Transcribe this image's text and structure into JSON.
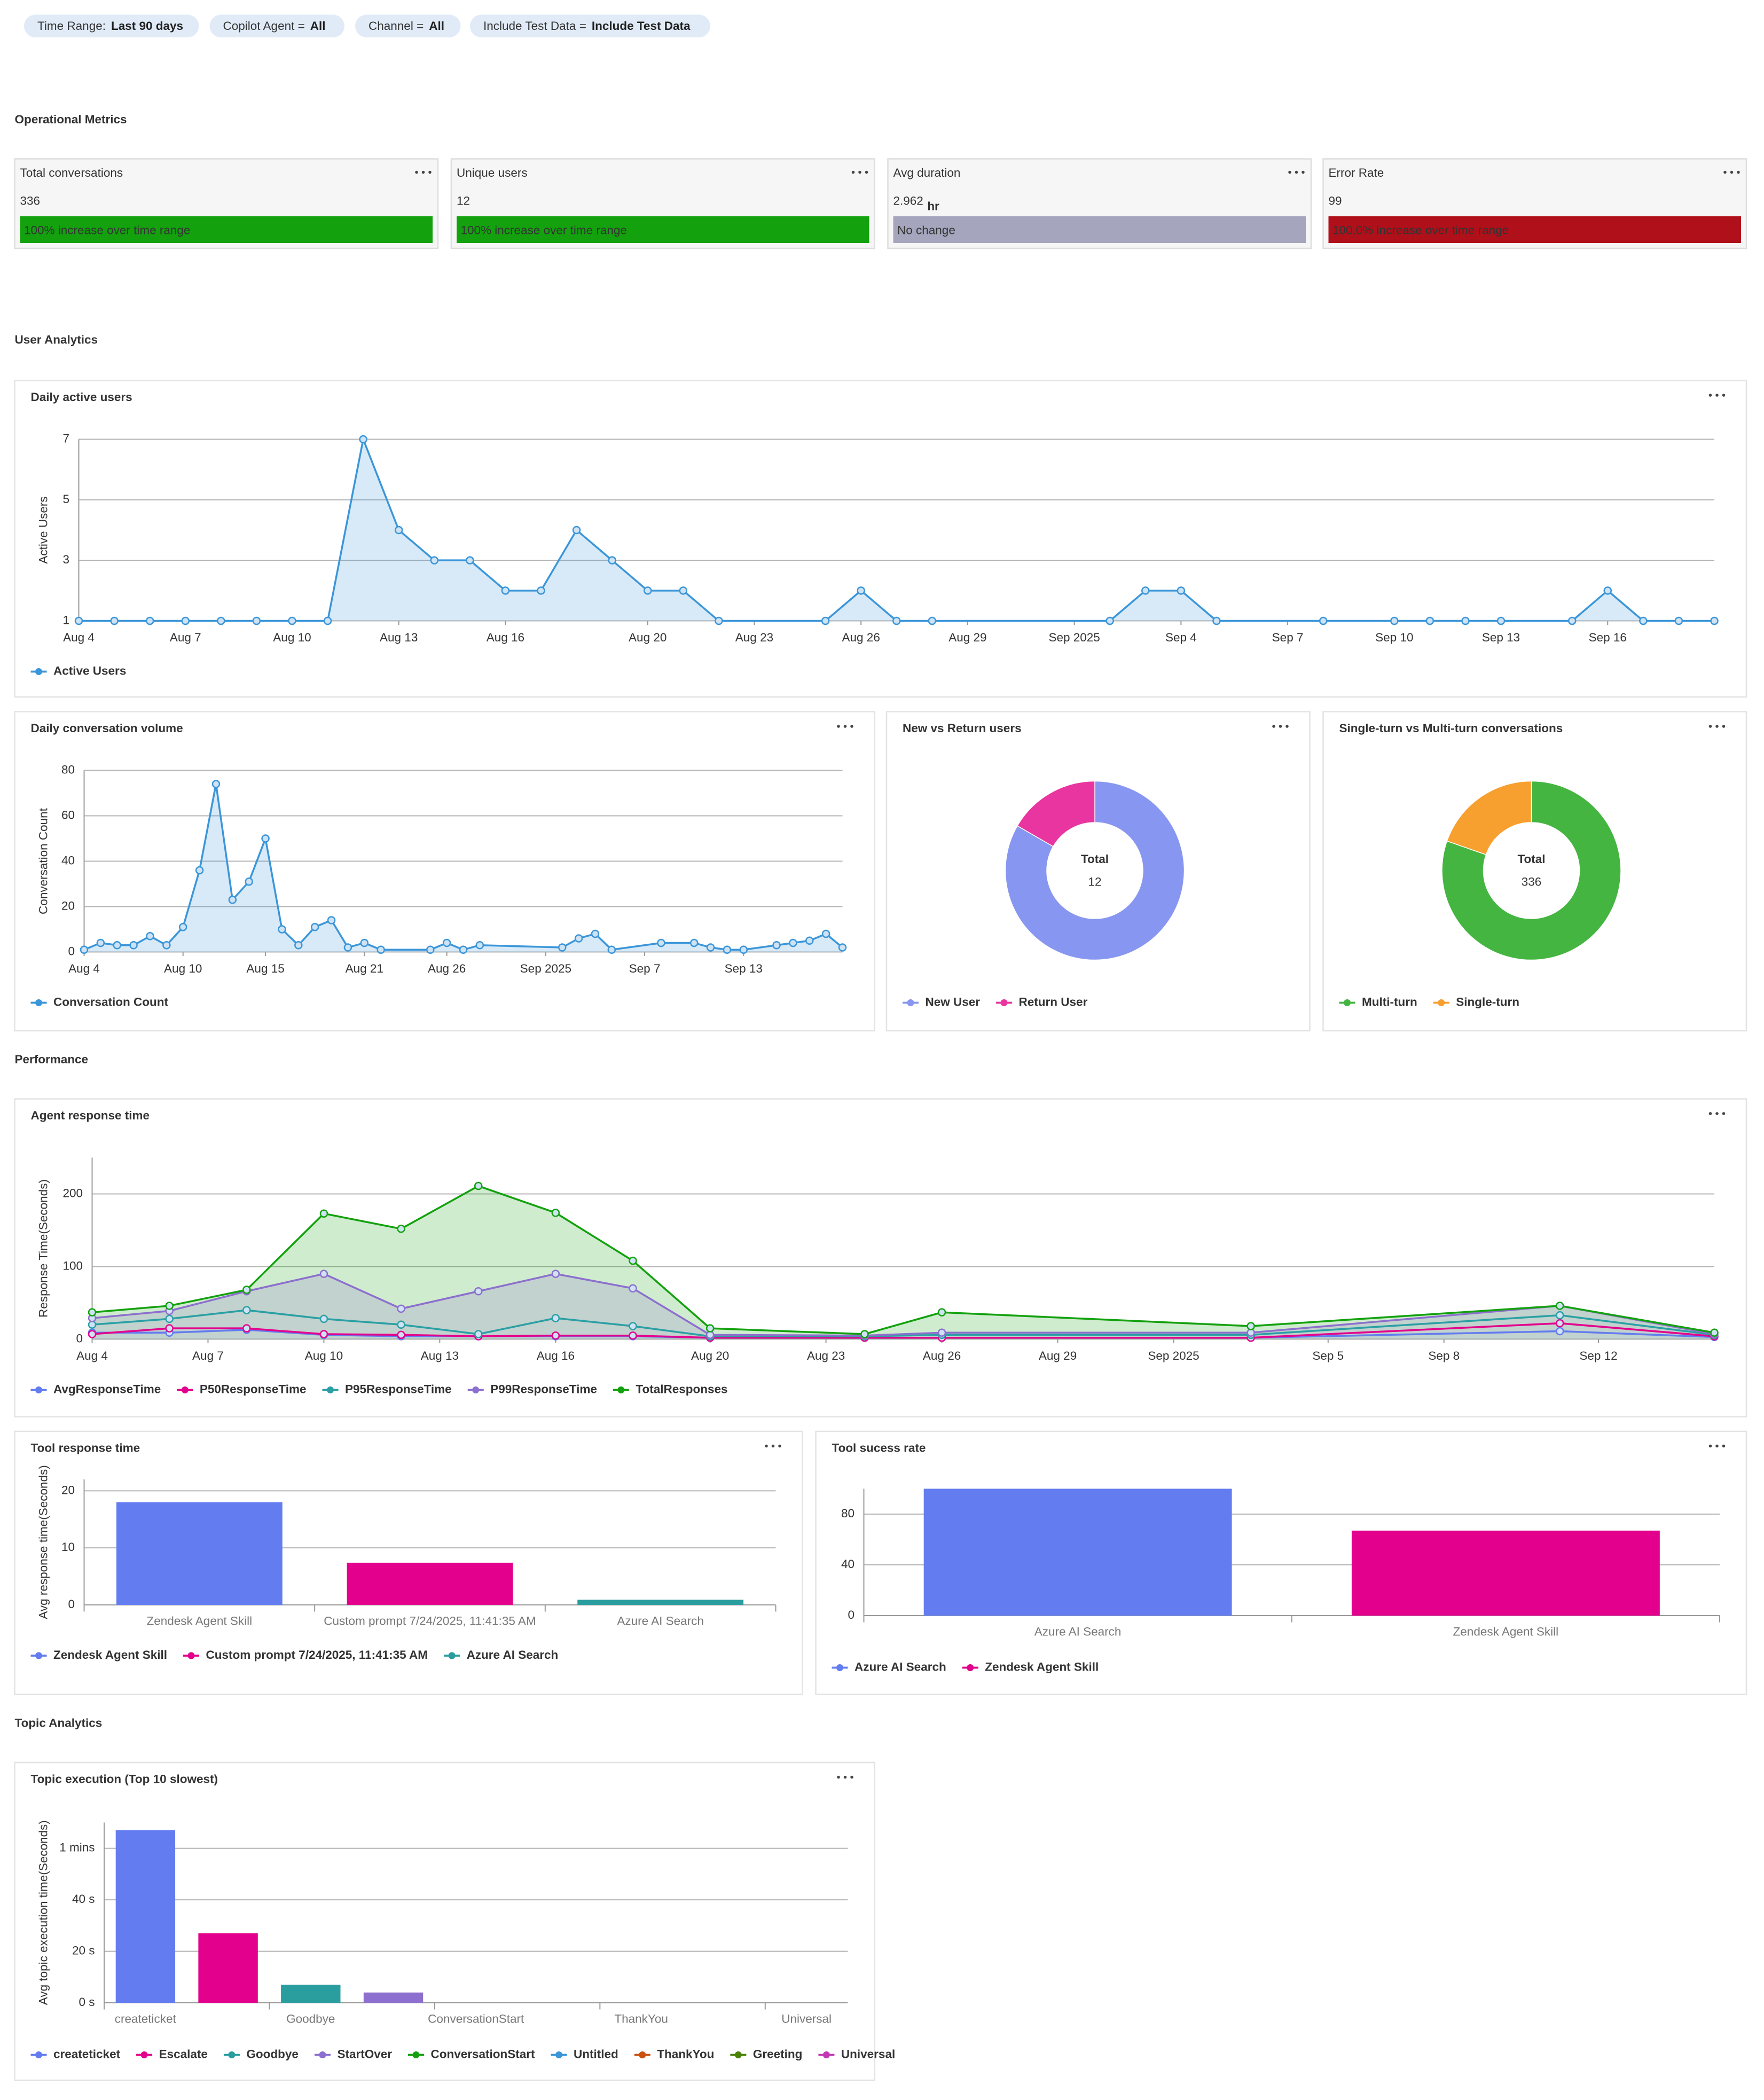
{
  "filters": [
    {
      "label": "Time Range:",
      "value": "Last 90 days"
    },
    {
      "label": "Copilot Agent =",
      "value": "All"
    },
    {
      "label": "Channel =",
      "value": "All"
    },
    {
      "label": "Include Test Data =",
      "value": "Include Test Data"
    }
  ],
  "sections": [
    "Operational Metrics",
    "User Analytics",
    "Performance",
    "Topic Analytics"
  ],
  "kpis": [
    {
      "title": "Total conversations",
      "value": 336,
      "note": "100% increase over time range",
      "color": "#13a10e"
    },
    {
      "title": "Unique users",
      "value": 12,
      "note": "100% increase over time range",
      "color": "#13a10e"
    },
    {
      "title": "Avg duration",
      "value": 2.962,
      "unit": "hr",
      "note": "No change",
      "color": "#a5a6bd"
    },
    {
      "title": "Error Rate",
      "value": 99,
      "note": "100.0% increase over time range",
      "color": "#b0101a"
    }
  ],
  "chart_data": [
    {
      "type": "area",
      "title": "Daily active users",
      "y_label": "Active Users",
      "x": [
        "2025-08-04",
        "2025-08-05",
        "2025-08-06",
        "2025-08-07",
        "2025-08-08",
        "2025-08-09",
        "2025-08-10",
        "2025-08-11",
        "2025-08-12",
        "2025-08-13",
        "2025-08-14",
        "2025-08-15",
        "2025-08-16",
        "2025-08-17",
        "2025-08-18",
        "2025-08-19",
        "2025-08-20",
        "2025-08-21",
        "2025-08-22",
        "2025-08-25",
        "2025-08-26",
        "2025-08-27",
        "2025-08-28",
        "2025-09-02",
        "2025-09-03",
        "2025-09-04",
        "2025-09-05",
        "2025-09-08",
        "2025-09-10",
        "2025-09-11",
        "2025-09-12",
        "2025-09-13",
        "2025-09-15",
        "2025-09-16",
        "2025-09-17",
        "2025-09-18",
        "2025-09-19"
      ],
      "series": [
        {
          "name": "Active Users",
          "color": "#3b96d9",
          "values": [
            1,
            1,
            1,
            1,
            1,
            1,
            1,
            1,
            7,
            4,
            3,
            3,
            2,
            2,
            4,
            3,
            2,
            2,
            1,
            1,
            2,
            1,
            1,
            1,
            2,
            2,
            1,
            1,
            1,
            1,
            1,
            1,
            1,
            2,
            1,
            1,
            1
          ]
        }
      ],
      "xlim": [
        "2025-08-04",
        "2025-09-19"
      ],
      "xticks": [
        {
          "value": "2025-08-04",
          "label": "Aug 4"
        },
        {
          "value": "2025-08-07",
          "label": "Aug 7"
        },
        {
          "value": "2025-08-10",
          "label": "Aug 10"
        },
        {
          "value": "2025-08-13",
          "label": "Aug 13"
        },
        {
          "value": "2025-08-16",
          "label": "Aug 16"
        },
        {
          "value": "2025-08-20",
          "label": "Aug 20"
        },
        {
          "value": "2025-08-23",
          "label": "Aug 23"
        },
        {
          "value": "2025-08-26",
          "label": "Aug 26"
        },
        {
          "value": "2025-08-29",
          "label": "Aug 29"
        },
        {
          "value": "2025-09-01",
          "label": "Sep 2025"
        },
        {
          "value": "2025-09-04",
          "label": "Sep 4"
        },
        {
          "value": "2025-09-07",
          "label": "Sep 7"
        },
        {
          "value": "2025-09-10",
          "label": "Sep 10"
        },
        {
          "value": "2025-09-13",
          "label": "Sep 13"
        },
        {
          "value": "2025-09-16",
          "label": "Sep 16"
        }
      ],
      "ylim": [
        1,
        7
      ],
      "yticks": [
        1,
        3,
        5,
        7
      ],
      "grid": true
    },
    {
      "type": "area",
      "title": "Daily conversation volume",
      "y_label": "Conversation Count",
      "x": [
        "2025-08-04",
        "2025-08-05",
        "2025-08-06",
        "2025-08-07",
        "2025-08-08",
        "2025-08-09",
        "2025-08-10",
        "2025-08-11",
        "2025-08-12",
        "2025-08-13",
        "2025-08-14",
        "2025-08-15",
        "2025-08-16",
        "2025-08-17",
        "2025-08-18",
        "2025-08-19",
        "2025-08-20",
        "2025-08-21",
        "2025-08-22",
        "2025-08-25",
        "2025-08-26",
        "2025-08-27",
        "2025-08-28",
        "2025-09-02",
        "2025-09-03",
        "2025-09-04",
        "2025-09-05",
        "2025-09-08",
        "2025-09-10",
        "2025-09-11",
        "2025-09-12",
        "2025-09-13",
        "2025-09-15",
        "2025-09-16",
        "2025-09-17",
        "2025-09-18",
        "2025-09-19"
      ],
      "series": [
        {
          "name": "Conversation Count",
          "color": "#3b96d9",
          "values": [
            1,
            4,
            3,
            3,
            7,
            3,
            11,
            36,
            74,
            23,
            31,
            50,
            10,
            3,
            11,
            14,
            2,
            4,
            1,
            1,
            4,
            1,
            3,
            2,
            6,
            8,
            1,
            4,
            4,
            2,
            1,
            1,
            3,
            4,
            5,
            8,
            2
          ]
        }
      ],
      "xlim": [
        "2025-08-04",
        "2025-09-19"
      ],
      "xticks": [
        {
          "value": "2025-08-04",
          "label": "Aug 4"
        },
        {
          "value": "2025-08-10",
          "label": "Aug 10"
        },
        {
          "value": "2025-08-15",
          "label": "Aug 15"
        },
        {
          "value": "2025-08-21",
          "label": "Aug 21"
        },
        {
          "value": "2025-08-26",
          "label": "Aug 26"
        },
        {
          "value": "2025-09-01",
          "label": "Sep 2025"
        },
        {
          "value": "2025-09-07",
          "label": "Sep 7"
        },
        {
          "value": "2025-09-13",
          "label": "Sep 13"
        }
      ],
      "ylim": [
        0,
        80
      ],
      "yticks": [
        0,
        20,
        40,
        60,
        80
      ],
      "grid": true
    },
    {
      "type": "donut",
      "title": "New vs Return users",
      "categories": [
        "New User",
        "Return User"
      ],
      "values": [
        10,
        2
      ],
      "colors": [
        "#8796f0",
        "#e8359f"
      ],
      "center_label": "Total",
      "total": 12
    },
    {
      "type": "donut",
      "title": "Single-turn vs Multi-turn conversations",
      "categories": [
        "Multi-turn",
        "Single-turn"
      ],
      "values": [
        270,
        66
      ],
      "colors": [
        "#45b541",
        "#f7a02f"
      ],
      "center_label": "Total",
      "total": 336
    },
    {
      "type": "line",
      "title": "Agent response time",
      "y_label": "Response Time(Seconds)",
      "x": [
        "2025-08-04",
        "2025-08-06",
        "2025-08-08",
        "2025-08-10",
        "2025-08-12",
        "2025-08-14",
        "2025-08-16",
        "2025-08-18",
        "2025-08-20",
        "2025-08-24",
        "2025-08-26",
        "2025-09-03",
        "2025-09-11",
        "2025-09-15"
      ],
      "series": [
        {
          "name": "AvgResponseTime",
          "color": "#637cef",
          "values": [
            9,
            9,
            13,
            6,
            4,
            4,
            4,
            4,
            2,
            2,
            2,
            2,
            11,
            3
          ]
        },
        {
          "name": "P50ResponseTime",
          "color": "#e3008c",
          "values": [
            7,
            15,
            15,
            7,
            6,
            4,
            5,
            5,
            2,
            2,
            2,
            2,
            22,
            4
          ]
        },
        {
          "name": "P95ResponseTime",
          "color": "#2aa0a4",
          "values": [
            20,
            28,
            40,
            28,
            20,
            7,
            29,
            18,
            4,
            4,
            6,
            6,
            33,
            6
          ]
        },
        {
          "name": "P99ResponseTime",
          "color": "#8c6fce",
          "values": [
            29,
            39,
            66,
            90,
            42,
            66,
            90,
            70,
            6,
            5,
            9,
            9,
            46,
            7
          ],
          "fill": true
        },
        {
          "name": "TotalResponses",
          "color": "#13a10e",
          "values": [
            37,
            46,
            68,
            173,
            152,
            211,
            174,
            108,
            15,
            7,
            37,
            18,
            46,
            9
          ],
          "fill": true
        }
      ],
      "xlim": [
        "2025-08-04",
        "2025-09-15"
      ],
      "xticks": [
        {
          "value": "2025-08-04",
          "label": "Aug 4"
        },
        {
          "value": "2025-08-07",
          "label": "Aug 7"
        },
        {
          "value": "2025-08-10",
          "label": "Aug 10"
        },
        {
          "value": "2025-08-13",
          "label": "Aug 13"
        },
        {
          "value": "2025-08-16",
          "label": "Aug 16"
        },
        {
          "value": "2025-08-20",
          "label": "Aug 20"
        },
        {
          "value": "2025-08-23",
          "label": "Aug 23"
        },
        {
          "value": "2025-08-26",
          "label": "Aug 26"
        },
        {
          "value": "2025-08-29",
          "label": "Aug 29"
        },
        {
          "value": "2025-09-01",
          "label": "Sep 2025"
        },
        {
          "value": "2025-09-05",
          "label": "Sep 5"
        },
        {
          "value": "2025-09-08",
          "label": "Sep 8"
        },
        {
          "value": "2025-09-12",
          "label": "Sep 12"
        }
      ],
      "ylim": [
        0,
        250
      ],
      "yticks": [
        0,
        100,
        200
      ],
      "grid": true
    },
    {
      "type": "bar",
      "title": "Tool response time",
      "y_label": "Avg response time(Seconds)",
      "categories": [
        "Zendesk Agent Skill",
        "Custom prompt 7/24/2025, 11:41:35 AM",
        "Azure AI Search"
      ],
      "values": [
        18,
        7.4,
        0.9
      ],
      "colors": [
        "#637cef",
        "#e3008c",
        "#2a9d9f"
      ],
      "ylim": [
        0,
        22
      ],
      "yticks": [
        0,
        10,
        20
      ],
      "grid": true
    },
    {
      "type": "bar",
      "title": "Tool sucess rate",
      "categories": [
        "Azure AI Search",
        "Zendesk Agent Skill"
      ],
      "values": [
        100,
        67
      ],
      "colors": [
        "#637cef",
        "#e3008c"
      ],
      "ylim": [
        0,
        100
      ],
      "yticks": [
        0,
        40,
        80
      ],
      "grid": true
    },
    {
      "type": "bar",
      "title": "Topic execution (Top 10 slowest)",
      "y_label": "Avg topic execution time(Seconds)",
      "categories": [
        "createticket",
        "Escalate",
        "Goodbye",
        "StartOver",
        "ConversationStart",
        "Untitled",
        "ThankYou",
        "Greeting",
        "Universal"
      ],
      "values": [
        67,
        27,
        7,
        4,
        0,
        0,
        0,
        0,
        0
      ],
      "colors": [
        "#637cef",
        "#e3008c",
        "#2a9d9f",
        "#8c6fce",
        "#13a10e",
        "#3b96d9",
        "#ca5010",
        "#498205",
        "#c239b3"
      ],
      "ylim": [
        0,
        70
      ],
      "yticks": [
        {
          "value": 0,
          "label": "0 s"
        },
        {
          "value": 20,
          "label": "20 s"
        },
        {
          "value": 40,
          "label": "40 s"
        },
        {
          "value": 60,
          "label": "1 mins"
        }
      ],
      "grid": true
    }
  ]
}
